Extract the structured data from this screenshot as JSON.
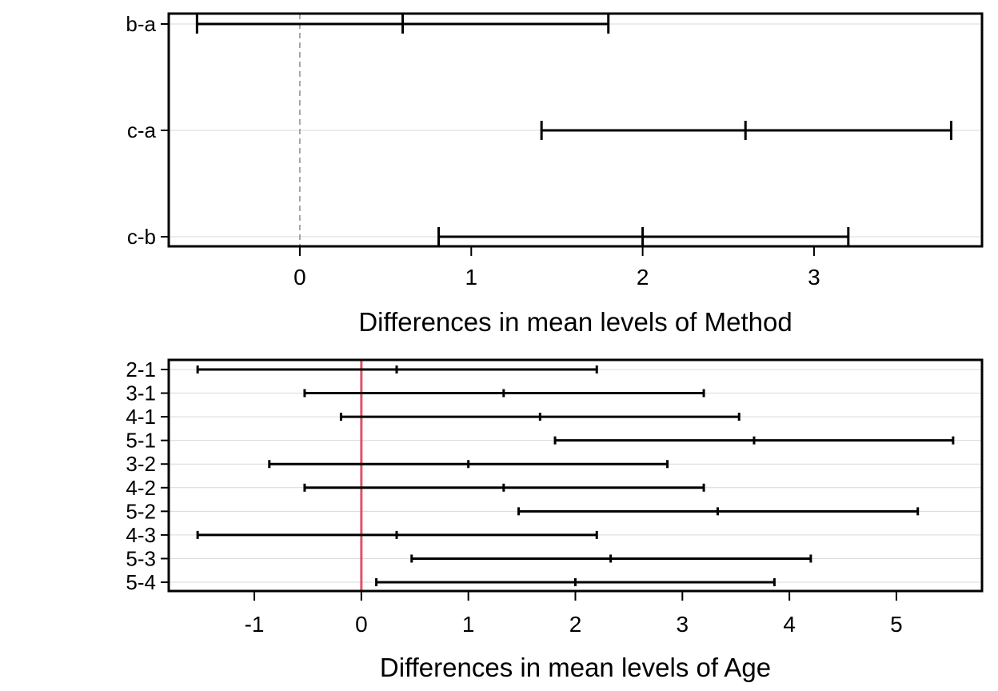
{
  "chart_data": [
    {
      "type": "interval",
      "xlabel": "Differences in mean levels of Method",
      "categories": [
        "b-a",
        "c-a",
        "c-b"
      ],
      "intervals": [
        {
          "label": "b-a",
          "lwr": -0.6,
          "diff": 0.6,
          "upr": 1.8
        },
        {
          "label": "c-a",
          "lwr": 1.41,
          "diff": 2.6,
          "upr": 3.8
        },
        {
          "label": "c-b",
          "lwr": 0.81,
          "diff": 2.0,
          "upr": 3.2
        }
      ],
      "x_ticks": [
        0,
        1,
        2,
        3
      ],
      "xlim": [
        -0.765,
        3.98
      ],
      "reference_line": {
        "x": 0,
        "style": "dashed",
        "color": "#555555"
      },
      "grid": "horizontal"
    },
    {
      "type": "interval",
      "xlabel": "Differences in mean levels of Age",
      "categories": [
        "2-1",
        "3-1",
        "4-1",
        "5-1",
        "3-2",
        "4-2",
        "5-2",
        "4-3",
        "5-3",
        "5-4"
      ],
      "intervals": [
        {
          "label": "2-1",
          "lwr": -1.53,
          "diff": 0.33,
          "upr": 2.2
        },
        {
          "label": "3-1",
          "lwr": -0.53,
          "diff": 1.33,
          "upr": 3.2
        },
        {
          "label": "4-1",
          "lwr": -0.19,
          "diff": 1.67,
          "upr": 3.53
        },
        {
          "label": "5-1",
          "lwr": 1.81,
          "diff": 3.67,
          "upr": 5.53
        },
        {
          "label": "3-2",
          "lwr": -0.86,
          "diff": 1.0,
          "upr": 2.86
        },
        {
          "label": "4-2",
          "lwr": -0.53,
          "diff": 1.33,
          "upr": 3.2
        },
        {
          "label": "5-2",
          "lwr": 1.47,
          "diff": 3.33,
          "upr": 5.2
        },
        {
          "label": "4-3",
          "lwr": -1.53,
          "diff": 0.33,
          "upr": 2.2
        },
        {
          "label": "5-3",
          "lwr": 0.47,
          "diff": 2.33,
          "upr": 4.2
        },
        {
          "label": "5-4",
          "lwr": 0.14,
          "diff": 2.0,
          "upr": 3.86
        }
      ],
      "x_ticks": [
        -1,
        0,
        1,
        2,
        3,
        4,
        5
      ],
      "xlim": [
        -1.8,
        5.8
      ],
      "reference_line": {
        "x": 0,
        "style": "solid",
        "color": "#df536b"
      },
      "grid": "horizontal"
    }
  ]
}
